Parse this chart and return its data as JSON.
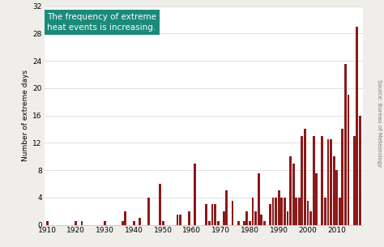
{
  "years": [
    1910,
    1911,
    1912,
    1913,
    1914,
    1915,
    1916,
    1917,
    1918,
    1919,
    1920,
    1921,
    1922,
    1923,
    1924,
    1925,
    1926,
    1927,
    1928,
    1929,
    1930,
    1931,
    1932,
    1933,
    1934,
    1935,
    1936,
    1937,
    1938,
    1939,
    1940,
    1941,
    1942,
    1943,
    1944,
    1945,
    1946,
    1947,
    1948,
    1949,
    1950,
    1951,
    1952,
    1953,
    1954,
    1955,
    1956,
    1957,
    1958,
    1959,
    1960,
    1961,
    1962,
    1963,
    1964,
    1965,
    1966,
    1967,
    1968,
    1969,
    1970,
    1971,
    1972,
    1973,
    1974,
    1975,
    1976,
    1977,
    1978,
    1979,
    1980,
    1981,
    1982,
    1983,
    1984,
    1985,
    1986,
    1987,
    1988,
    1989,
    1990,
    1991,
    1992,
    1993,
    1994,
    1995,
    1996,
    1997,
    1998,
    1999,
    2000,
    2001,
    2002,
    2003,
    2004,
    2005,
    2006,
    2007,
    2008,
    2009,
    2010,
    2011,
    2012,
    2013,
    2014,
    2015,
    2016,
    2017,
    2018
  ],
  "values": [
    0.5,
    0,
    0,
    0,
    0,
    0,
    0,
    0,
    0,
    0,
    0.5,
    0,
    0.5,
    0,
    0,
    0,
    0,
    0,
    0,
    0,
    0.5,
    0,
    0,
    0,
    0,
    0,
    0.5,
    2,
    0,
    0,
    0.5,
    0,
    1,
    0,
    0,
    4,
    0,
    0,
    0,
    6,
    0.5,
    0,
    0,
    0,
    0,
    1.5,
    1.5,
    0,
    0,
    2,
    0,
    9,
    0,
    0,
    0,
    3,
    0.5,
    3,
    3,
    0.5,
    0,
    2,
    5,
    0,
    3.5,
    0,
    0.5,
    0,
    0.5,
    2,
    0.5,
    4,
    2,
    7.5,
    1.5,
    0.5,
    0,
    3,
    4,
    4,
    5,
    4,
    4,
    2,
    10,
    9,
    4,
    4,
    13,
    14,
    3.5,
    2,
    13,
    7.5,
    0,
    13,
    4,
    12.5,
    12.5,
    10,
    8,
    4,
    14,
    23.5,
    19,
    0,
    13,
    29,
    16
  ],
  "bar_color": "#8B1A1A",
  "ylabel": "Number of extreme days",
  "xlim": [
    1909,
    2019
  ],
  "ylim": [
    0,
    32
  ],
  "yticks": [
    0,
    4,
    8,
    12,
    16,
    20,
    24,
    28,
    32
  ],
  "xticks": [
    1910,
    1920,
    1930,
    1940,
    1950,
    1960,
    1970,
    1980,
    1990,
    2000,
    2010
  ],
  "annotation_text": "The frequency of extreme\nheat events is increasing.",
  "annotation_bg_color": "#1a8a7a",
  "annotation_text_color": "#ffffff",
  "source_text": "Source: Bureau of Meteorology",
  "plot_bg_color": "#ffffff",
  "fig_bg_color": "#f0eeea",
  "grid_color": "#e0e0e0"
}
